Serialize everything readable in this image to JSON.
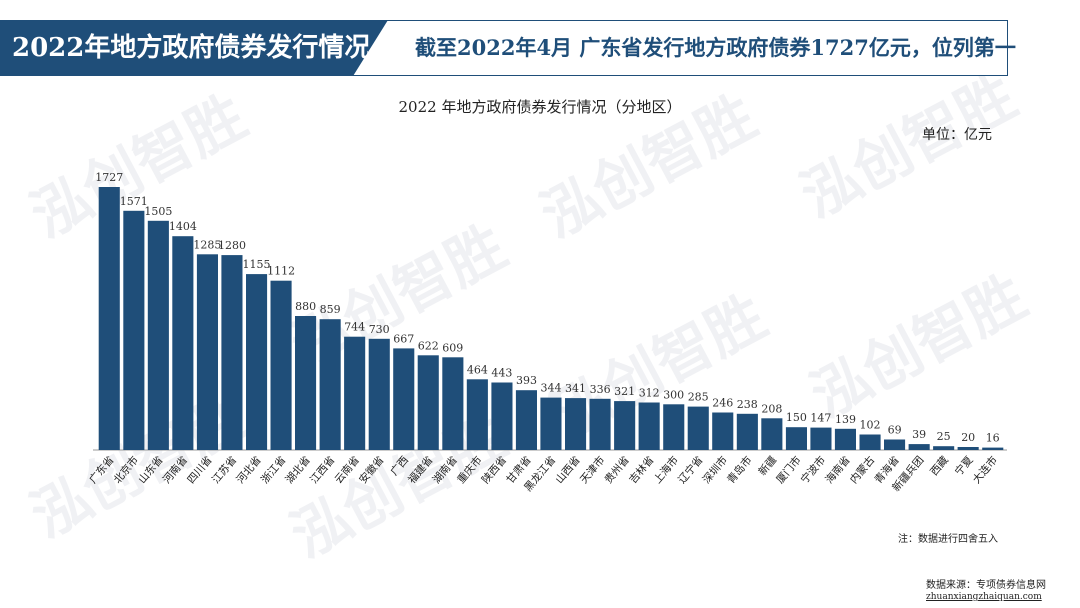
{
  "header": {
    "title": "2022年地方政府债券发行情况",
    "headline": "截至2022年4月  广东省发行地方政府债券1727亿元，位列第一"
  },
  "watermark": "泓创智胜",
  "unit": "单位：亿元",
  "note": "注：数据进行四舍五入",
  "source": {
    "label": "数据来源：专项债券信息网",
    "url": "zhuanxiangzhaiquan.com"
  },
  "colors": {
    "bar": "#1f4e79",
    "header_bg": "#1f4e79"
  },
  "chart_data": {
    "type": "bar",
    "title": "2022 年地方政府债券发行情况（分地区）",
    "xlabel": "",
    "ylabel": "单位：亿元",
    "ylim": [
      0,
      1750
    ],
    "grid": false,
    "categories": [
      "广东省",
      "北京市",
      "山东省",
      "河南省",
      "四川省",
      "江苏省",
      "河北省",
      "浙江省",
      "湖北省",
      "江西省",
      "云南省",
      "安徽省",
      "广西",
      "福建省",
      "湖南省",
      "重庆市",
      "陕西省",
      "甘肃省",
      "黑龙江省",
      "山西省",
      "天津市",
      "贵州省",
      "吉林省",
      "上海市",
      "辽宁省",
      "深圳市",
      "青岛市",
      "新疆",
      "厦门市",
      "宁波市",
      "海南省",
      "内蒙古",
      "青海省",
      "新疆兵团",
      "西藏",
      "宁夏",
      "大连市"
    ],
    "values": [
      1727,
      1571,
      1505,
      1404,
      1285,
      1280,
      1155,
      1112,
      880,
      859,
      744,
      730,
      667,
      622,
      609,
      464,
      443,
      393,
      344,
      341,
      336,
      321,
      312,
      300,
      285,
      246,
      238,
      208,
      150,
      147,
      139,
      102,
      69,
      39,
      25,
      20,
      16
    ]
  }
}
